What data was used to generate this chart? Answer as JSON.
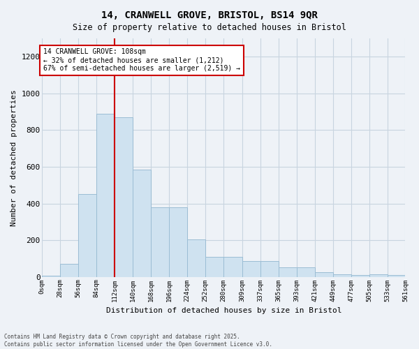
{
  "title_line1": "14, CRANWELL GROVE, BRISTOL, BS14 9QR",
  "title_line2": "Size of property relative to detached houses in Bristol",
  "xlabel": "Distribution of detached houses by size in Bristol",
  "ylabel": "Number of detached properties",
  "bar_color": "#cfe2f0",
  "bar_edge_color": "#9bbdd4",
  "vline_color": "#cc0000",
  "vline_x": 112,
  "annotation_title": "14 CRANWELL GROVE: 108sqm",
  "annotation_line2": "← 32% of detached houses are smaller (1,212)",
  "annotation_line3": "67% of semi-detached houses are larger (2,519) →",
  "bins": [
    0,
    28,
    56,
    84,
    112,
    140,
    168,
    196,
    224,
    252,
    280,
    309,
    337,
    365,
    393,
    421,
    449,
    477,
    505,
    533,
    561
  ],
  "bin_labels": [
    "0sqm",
    "28sqm",
    "56sqm",
    "84sqm",
    "112sqm",
    "140sqm",
    "168sqm",
    "196sqm",
    "224sqm",
    "252sqm",
    "280sqm",
    "309sqm",
    "337sqm",
    "365sqm",
    "393sqm",
    "421sqm",
    "449sqm",
    "477sqm",
    "505sqm",
    "533sqm",
    "561sqm"
  ],
  "values": [
    5,
    70,
    450,
    890,
    870,
    585,
    380,
    380,
    205,
    110,
    110,
    85,
    85,
    50,
    50,
    25,
    15,
    10,
    15,
    10
  ],
  "ylim": [
    0,
    1300
  ],
  "yticks": [
    0,
    200,
    400,
    600,
    800,
    1000,
    1200
  ],
  "bg_color": "#eef2f7",
  "grid_color": "#c8d4e0",
  "footnote1": "Contains HM Land Registry data © Crown copyright and database right 2025.",
  "footnote2": "Contains public sector information licensed under the Open Government Licence v3.0."
}
